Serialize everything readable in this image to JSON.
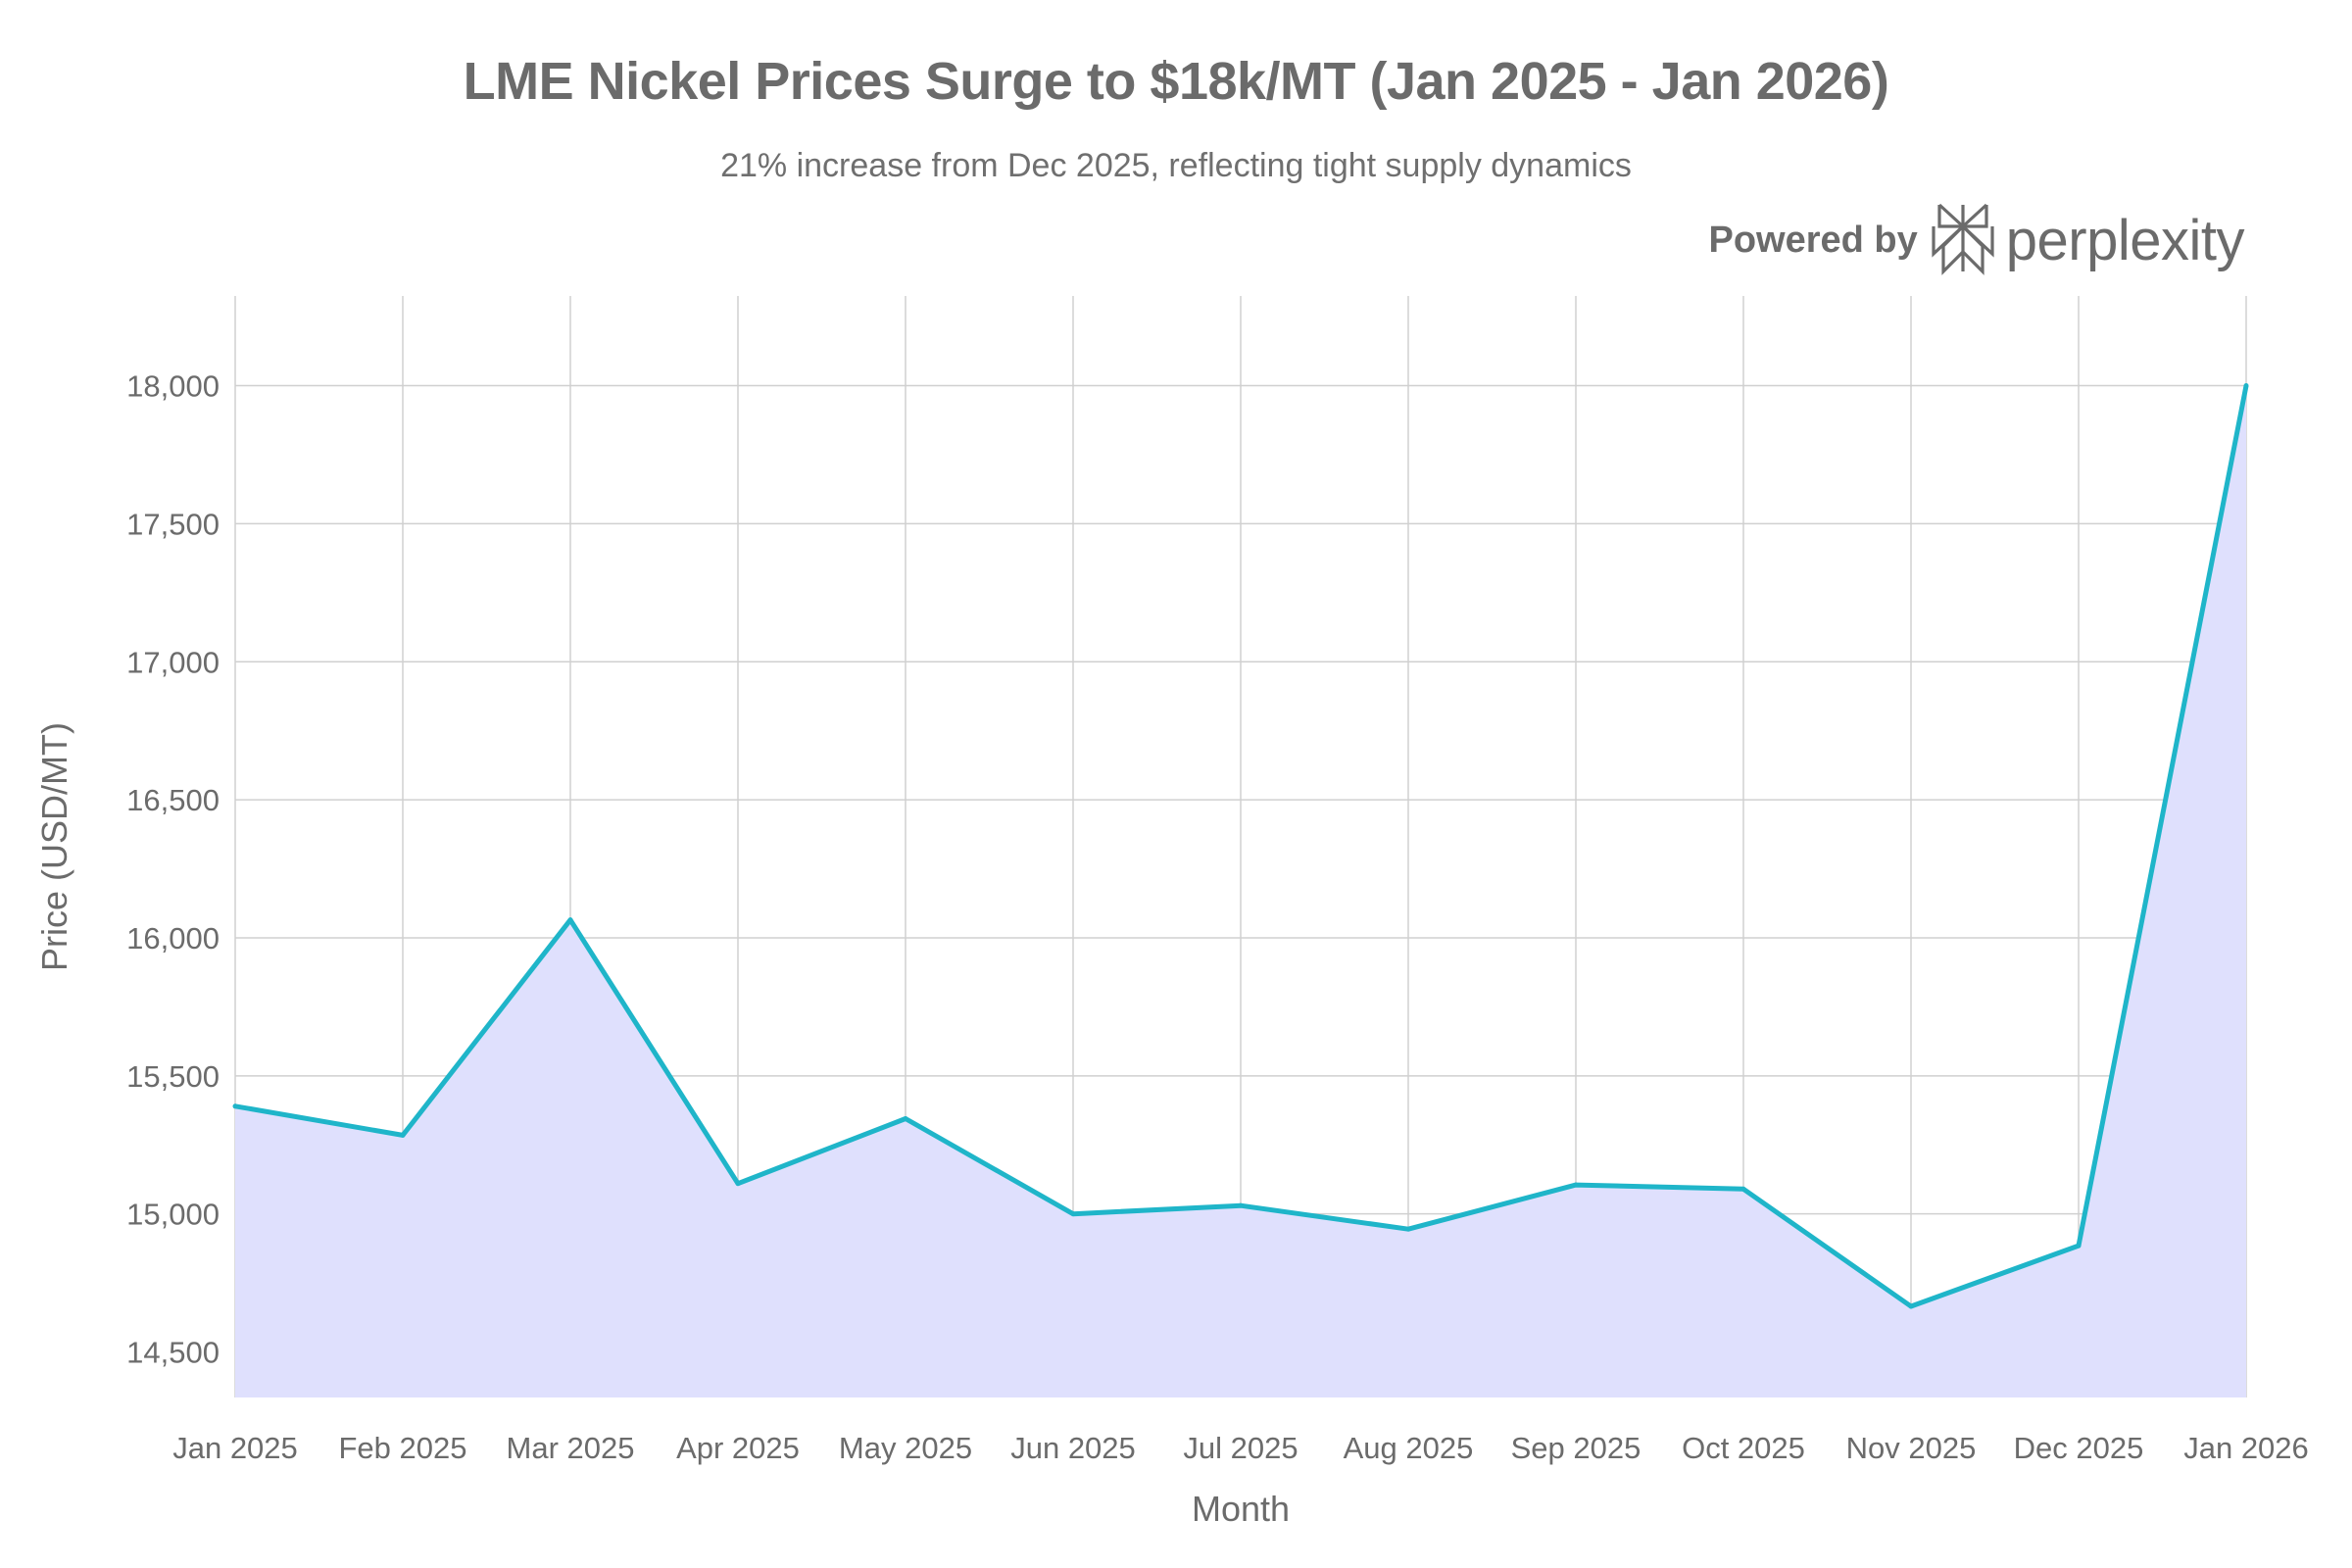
{
  "chart_data": {
    "type": "area",
    "title": "LME Nickel Prices Surge to $18k/MT (Jan 2025 - Jan 2026)",
    "subtitle": "21% increase from Dec 2025, reflecting tight supply dynamics",
    "xlabel": "Month",
    "ylabel": "Price (USD/MT)",
    "categories": [
      "Jan 2025",
      "Feb 2025",
      "Mar 2025",
      "Apr 2025",
      "May 2025",
      "Jun 2025",
      "Jul 2025",
      "Aug 2025",
      "Sep 2025",
      "Oct 2025",
      "Nov 2025",
      "Dec 2025",
      "Jan 2026"
    ],
    "values": [
      15390,
      15285,
      16065,
      15110,
      15345,
      15000,
      15030,
      14945,
      15105,
      15090,
      14665,
      14885,
      18000
    ],
    "ylim": [
      14335,
      18325
    ],
    "yticks": [
      14500,
      15000,
      15500,
      16000,
      16500,
      17000,
      17500,
      18000
    ],
    "ytick_labels": [
      "14,500",
      "15,000",
      "15,500",
      "16,000",
      "16,500",
      "17,000",
      "17,500",
      "18,000"
    ],
    "grid": true,
    "line_color": "#1fb5c9",
    "fill_color": "#dfe0fd",
    "grid_color": "#d0d0d0"
  },
  "branding": {
    "powered_by": "Powered by",
    "name": "perplexity",
    "logo_icon": "perplexity-logo-icon"
  }
}
